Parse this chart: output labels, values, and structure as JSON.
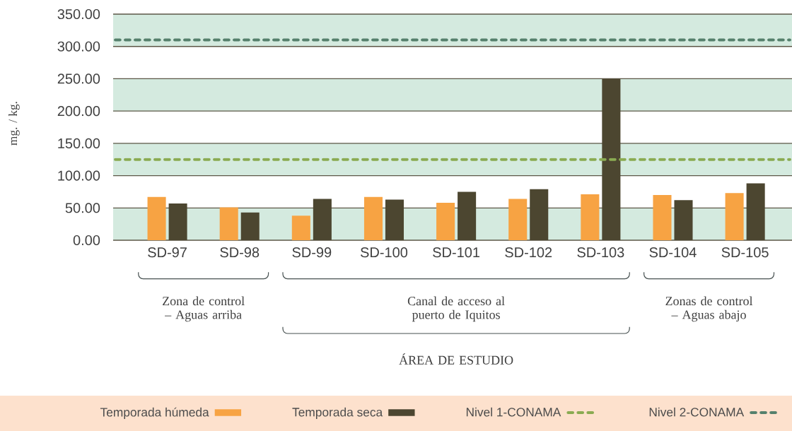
{
  "chart_data": {
    "type": "bar",
    "ylabel": "mg. / kg.",
    "categories": [
      "SD-97",
      "SD-98",
      "SD-99",
      "SD-100",
      "SD-101",
      "SD-102",
      "SD-103",
      "SD-104",
      "SD-105"
    ],
    "series": [
      {
        "name": "Temporada húmeda",
        "color": "#f7a343",
        "values": [
          67,
          51,
          38,
          67,
          58,
          64,
          71,
          70,
          73
        ]
      },
      {
        "name": "Temporada seca",
        "color": "#4c4630",
        "values": [
          57,
          43,
          64,
          63,
          75,
          79,
          250,
          62,
          88
        ]
      }
    ],
    "ylim": [
      0,
      350
    ],
    "yticks": [
      {
        "value": 0,
        "label": "0.00"
      },
      {
        "value": 50,
        "label": "50.00"
      },
      {
        "value": 100,
        "label": "100.00"
      },
      {
        "value": 150,
        "label": "150.00"
      },
      {
        "value": 200,
        "label": "200.00"
      },
      {
        "value": 250,
        "label": "250.00"
      },
      {
        "value": 300,
        "label": "300.00"
      },
      {
        "value": 350,
        "label": "350.00"
      }
    ],
    "grid": "y",
    "legend": "bottom",
    "ref_lines": [
      {
        "axis": "y",
        "value": 125,
        "label": "Nivel 1-CONAMA",
        "color": "#8aab52",
        "line_style": "dashed"
      },
      {
        "axis": "y",
        "value": 310,
        "label": "Nivel 2-CONAMA",
        "color": "#55806c",
        "line_style": "dashed"
      }
    ],
    "bands": [
      {
        "axis": "y",
        "from": 0,
        "to": 50,
        "color": "#d4eadf"
      },
      {
        "axis": "y",
        "from": 100,
        "to": 150,
        "color": "#d4eadf"
      },
      {
        "axis": "y",
        "from": 200,
        "to": 250,
        "color": "#d4eadf"
      },
      {
        "axis": "y",
        "from": 300,
        "to": 350,
        "color": "#d4eadf"
      }
    ],
    "annotations": [
      "Zona de control – Aguas arriba",
      "Canal de acceso al puerto de Iquitos",
      "Zonas de control – Aguas abajo",
      "ÁREA DE ESTUDIO"
    ]
  }
}
